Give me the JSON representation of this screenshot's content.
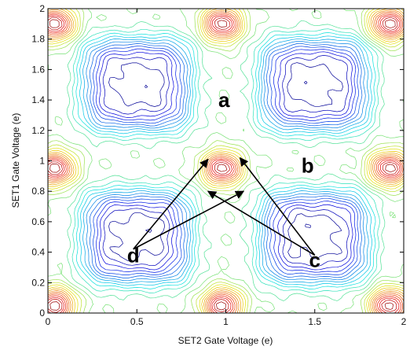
{
  "chart_data": {
    "type": "contour",
    "title": "",
    "xlabel": "SET2 Gate Voltage (e)",
    "ylabel": "SET1 Gate Voltage (e)",
    "xlim": [
      0,
      2
    ],
    "ylim": [
      0,
      2
    ],
    "x_ticks": [
      0,
      0.5,
      1,
      1.5,
      2
    ],
    "y_ticks": [
      0,
      0.2,
      0.4,
      0.6,
      0.8,
      1,
      1.2,
      1.4,
      1.6,
      1.8,
      2
    ],
    "x_tick_labels": [
      "0",
      "0.5",
      "1",
      "1.5",
      "2"
    ],
    "y_tick_labels": [
      "0",
      "0.2",
      "0.4",
      "0.6",
      "0.8",
      "1",
      "1.2",
      "1.4",
      "1.6",
      "1.8",
      "2"
    ],
    "grid": false,
    "colormap": "jet",
    "high_peaks": [
      {
        "x": 0.04,
        "y": 0.05
      },
      {
        "x": 0.98,
        "y": 0.05
      },
      {
        "x": 1.92,
        "y": 0.05
      },
      {
        "x": 0.04,
        "y": 0.95
      },
      {
        "x": 0.98,
        "y": 0.95
      },
      {
        "x": 1.92,
        "y": 0.95
      },
      {
        "x": 0.04,
        "y": 1.9
      },
      {
        "x": 0.98,
        "y": 1.9
      },
      {
        "x": 1.92,
        "y": 1.9
      }
    ],
    "low_valleys": [
      {
        "x": 0.5,
        "y": 0.5
      },
      {
        "x": 1.5,
        "y": 0.5
      },
      {
        "x": 0.5,
        "y": 1.5
      },
      {
        "x": 1.5,
        "y": 1.5
      }
    ],
    "annotations": [
      {
        "label": "a",
        "x": 0.99,
        "y": 1.4
      },
      {
        "label": "b",
        "x": 1.46,
        "y": 0.97
      },
      {
        "label": "c",
        "x": 1.5,
        "y": 0.35
      },
      {
        "label": "d",
        "x": 0.48,
        "y": 0.38
      }
    ],
    "arrows": [
      {
        "from": "c",
        "from_xy": [
          1.5,
          0.38
        ],
        "to_xy": [
          1.08,
          1.02
        ]
      },
      {
        "from": "c",
        "from_xy": [
          1.5,
          0.38
        ],
        "to_xy": [
          0.9,
          0.8
        ]
      },
      {
        "from": "d",
        "from_xy": [
          0.48,
          0.42
        ],
        "to_xy": [
          0.9,
          1.01
        ]
      },
      {
        "from": "d",
        "from_xy": [
          0.48,
          0.42
        ],
        "to_xy": [
          1.1,
          0.8
        ]
      }
    ]
  }
}
